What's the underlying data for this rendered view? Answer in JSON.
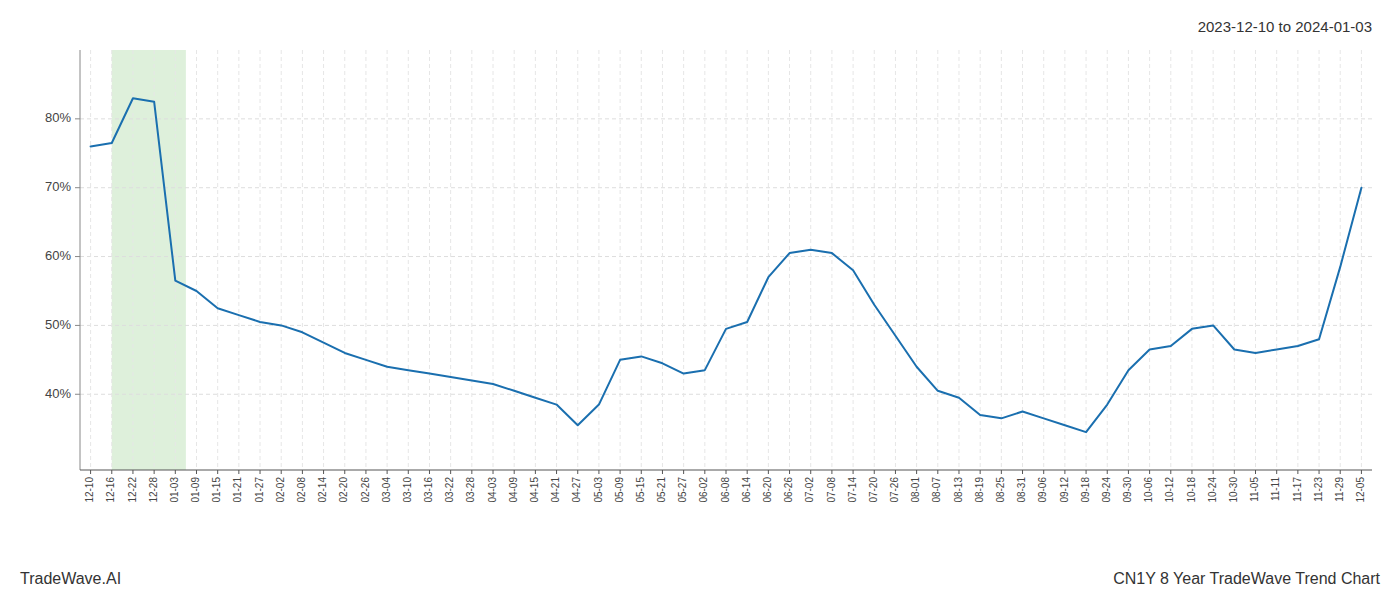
{
  "chart_data": {
    "type": "line",
    "title": "2023-12-10 to 2024-01-03",
    "annotations": [
      "TradeWave.AI",
      "CN1Y 8 Year TradeWave Trend Chart"
    ],
    "color": "#1a6faf",
    "grid": true,
    "highlight": {
      "start": 1,
      "end": 4.5,
      "color": "#d6ecd2"
    },
    "ylim": [
      29,
      90
    ],
    "yticks": [
      {
        "value": 40,
        "label": "40%"
      },
      {
        "value": 50,
        "label": "50%"
      },
      {
        "value": 60,
        "label": "60%"
      },
      {
        "value": 70,
        "label": "70%"
      },
      {
        "value": 80,
        "label": "80%"
      }
    ],
    "categories": [
      "12-10",
      "12-16",
      "12-22",
      "12-28",
      "01-03",
      "01-09",
      "01-15",
      "01-21",
      "01-27",
      "02-02",
      "02-08",
      "02-14",
      "02-20",
      "02-26",
      "03-04",
      "03-10",
      "03-16",
      "03-22",
      "03-28",
      "04-03",
      "04-09",
      "04-15",
      "04-21",
      "04-27",
      "05-03",
      "05-09",
      "05-15",
      "05-21",
      "05-27",
      "06-02",
      "06-08",
      "06-14",
      "06-20",
      "06-26",
      "07-02",
      "07-08",
      "07-14",
      "07-20",
      "07-26",
      "08-01",
      "08-07",
      "08-13",
      "08-19",
      "08-25",
      "08-31",
      "09-06",
      "09-12",
      "09-18",
      "09-24",
      "09-30",
      "10-06",
      "10-12",
      "10-18",
      "10-24",
      "10-30",
      "11-05",
      "11-11",
      "11-17",
      "11-23",
      "11-29",
      "12-05"
    ],
    "values": [
      76.0,
      76.5,
      83.0,
      82.5,
      56.5,
      55.0,
      52.5,
      51.5,
      50.5,
      50.0,
      49.0,
      47.5,
      46.0,
      45.0,
      44.0,
      43.5,
      43.0,
      42.5,
      42.0,
      41.5,
      40.5,
      39.5,
      38.5,
      35.5,
      38.5,
      45.0,
      45.5,
      44.5,
      43.0,
      43.5,
      49.5,
      50.5,
      57.0,
      60.5,
      61.0,
      60.5,
      58.0,
      53.0,
      48.5,
      44.0,
      40.5,
      39.5,
      37.0,
      36.5,
      37.5,
      36.5,
      35.5,
      34.5,
      38.5,
      43.5,
      46.5,
      47.0,
      49.5,
      50.0,
      46.5,
      46.0,
      46.5,
      47.0,
      48.0,
      58.5,
      70.0
    ]
  }
}
